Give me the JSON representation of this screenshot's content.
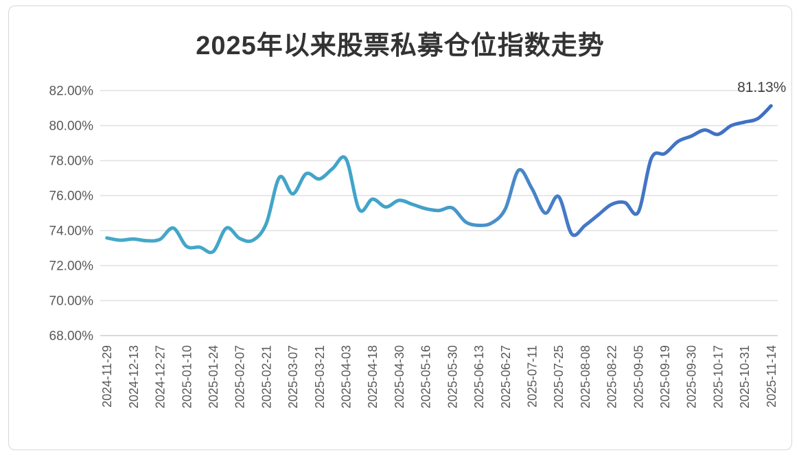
{
  "chart_data": {
    "type": "line",
    "title": "2025年以来股票私募仓位指数走势",
    "xlabel": "",
    "ylabel": "",
    "ylim": [
      68,
      82
    ],
    "y_ticks": [
      "82.00%",
      "80.00%",
      "78.00%",
      "76.00%",
      "74.00%",
      "72.00%",
      "70.00%",
      "68.00%"
    ],
    "y_tick_values": [
      82,
      80,
      78,
      76,
      74,
      72,
      70,
      68
    ],
    "grid": "horizontal-only",
    "legend": "none",
    "x_labels": [
      "2024-11-29",
      "2024-12-13",
      "2024-12-27",
      "2025-01-10",
      "2025-01-24",
      "2025-02-07",
      "2025-02-21",
      "2025-03-07",
      "2025-03-21",
      "2025-04-03",
      "2025-04-18",
      "2025-04-30",
      "2025-05-16",
      "2025-05-30",
      "2025-06-13",
      "2025-06-27",
      "2025-07-11",
      "2025-07-25",
      "2025-08-08",
      "2025-08-22",
      "2025-09-05",
      "2025-09-19",
      "2025-09-30",
      "2025-10-17",
      "2025-10-31",
      "2025-11-14"
    ],
    "label_every": 2,
    "values": [
      73.58,
      73.45,
      73.52,
      73.42,
      73.5,
      74.15,
      73.1,
      73.05,
      72.8,
      74.15,
      73.55,
      73.45,
      74.4,
      77.05,
      76.1,
      77.25,
      76.95,
      77.55,
      78.1,
      75.2,
      75.8,
      75.35,
      75.73,
      75.5,
      75.25,
      75.15,
      75.3,
      74.5,
      74.3,
      74.45,
      75.25,
      77.45,
      76.4,
      75.0,
      75.95,
      73.8,
      74.3,
      74.9,
      75.5,
      75.6,
      75.05,
      78.15,
      78.4,
      79.1,
      79.4,
      79.75,
      79.5,
      80.0,
      80.2,
      80.4,
      81.13
    ],
    "end_label": "81.13%",
    "colors": {
      "line_gradient": [
        "#45A8C8",
        "#41A3C9",
        "#4B8FCB",
        "#4478C6",
        "#3E70C2"
      ],
      "grid_color": "#D9D9D9",
      "axis_line_color": "#C2C2C2",
      "axis_text_color": "#595959",
      "title_color": "#333333",
      "end_label_color": "#404040"
    }
  }
}
